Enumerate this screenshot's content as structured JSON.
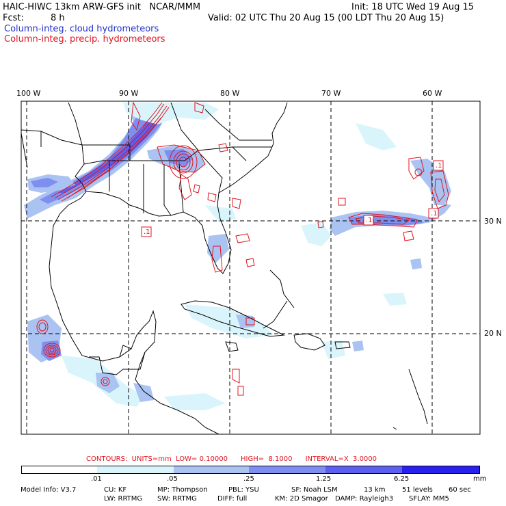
{
  "header": {
    "model_title": "HAIC-HIWC 13km ARW-GFS init   NCAR/MMM",
    "init": "Init: 18 UTC Wed 19 Aug 15",
    "fcst_label": "Fcst:",
    "fcst_value": "8 h",
    "valid": "Valid: 02 UTC Thu 20 Aug 15 (00 LDT Thu 20 Aug 15)",
    "field1": "Column-integ. cloud hydrometeors",
    "field2": "Column-integ. precip. hydrometeors"
  },
  "axes": {
    "lon_labels": [
      "100 W",
      "90 W",
      "80 W",
      "70 W",
      "60 W"
    ],
    "lat_labels": [
      "30 N",
      "20 N"
    ]
  },
  "contour_markers": [
    ".1",
    ".1",
    ".1",
    ".1"
  ],
  "contour_info": {
    "label": "CONTOURS:  UNITS=mm  LOW= 0.10000      HIGH=  8.1000      INTERVAL=X  3.0000"
  },
  "colorbar": {
    "ticks": [
      ".01",
      ".05",
      ".25",
      "1.25",
      "6.25"
    ],
    "units": "mm",
    "colors": [
      "#ffffff",
      "#d9f5fb",
      "#aac3f2",
      "#7f8ff0",
      "#5d60ee",
      "#2a20ee"
    ]
  },
  "model_info": {
    "line1": [
      "Model Info: V3.7",
      "CU: KF",
      "MP: Thompson",
      "PBL: YSU",
      "SF: Noah LSM",
      "13 km",
      "51 levels",
      "60 sec"
    ],
    "line2": [
      "LW: RRTMG",
      "SW: RRTMG",
      "DIFF: full",
      "KM: 2D Smagor",
      "DAMP: Rayleigh3",
      "SFLAY: MM5"
    ]
  }
}
